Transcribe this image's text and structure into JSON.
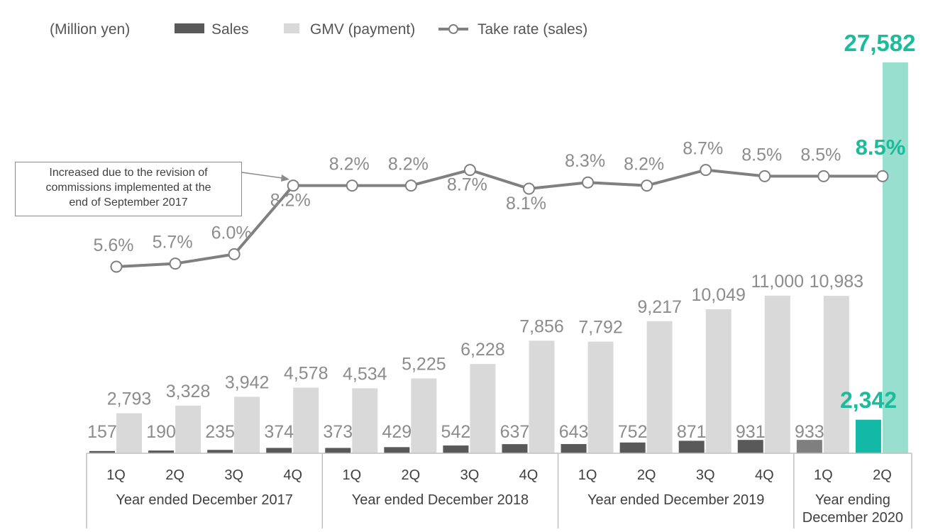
{
  "chart_data": {
    "type": "bar",
    "unit_label": "(Million yen)",
    "categories": [
      "1Q",
      "2Q",
      "3Q",
      "4Q",
      "1Q",
      "2Q",
      "3Q",
      "4Q",
      "1Q",
      "2Q",
      "3Q",
      "4Q",
      "1Q",
      "2Q"
    ],
    "groups": [
      {
        "label": "Year ended December 2017",
        "count": 4
      },
      {
        "label": "Year ended December 2018",
        "count": 4
      },
      {
        "label": "Year ended December 2019",
        "count": 4
      },
      {
        "label_lines": [
          "Year ending",
          "December 2020"
        ],
        "count": 2
      }
    ],
    "series": [
      {
        "name": "Sales",
        "kind": "bar",
        "values": [
          157,
          190,
          235,
          374,
          373,
          429,
          542,
          637,
          643,
          752,
          871,
          931,
          933,
          2342
        ],
        "labels": [
          "157",
          "190",
          "235",
          "374",
          "373",
          "429",
          "542",
          "637",
          "643",
          "752",
          "871",
          "931",
          "933",
          "2,342"
        ]
      },
      {
        "name": "GMV (payment)",
        "kind": "bar",
        "values": [
          2793,
          3328,
          3942,
          4578,
          4534,
          5225,
          6228,
          7856,
          7792,
          9217,
          10049,
          11000,
          10983,
          27582
        ],
        "labels": [
          "2,793",
          "3,328",
          "3,942",
          "4,578",
          "4,534",
          "5,225",
          "6,228",
          "7,856",
          "7,792",
          "9,217",
          "10,049",
          "11,000",
          "10,983",
          "27,582"
        ]
      },
      {
        "name": "Take rate (sales)",
        "kind": "line",
        "values": [
          5.6,
          5.7,
          6.0,
          8.2,
          8.2,
          8.2,
          8.7,
          8.1,
          8.3,
          8.2,
          8.7,
          8.5,
          8.5,
          8.5
        ],
        "labels": [
          "5.6%",
          "5.7%",
          "6.0%",
          "8.2%",
          "8.2%",
          "8.2%",
          "8.7%",
          "8.1%",
          "8.3%",
          "8.2%",
          "8.7%",
          "8.5%",
          "8.5%",
          "8.5%"
        ]
      }
    ],
    "annotation": {
      "lines": [
        "Increased due to the revision of",
        "commissions implemented at the",
        "end of September 2017"
      ],
      "target_index": 3
    },
    "colors": {
      "sales": "#595959",
      "sales_prev_quarter": "#7f7f7f",
      "gmv": "#d9d9d9",
      "highlight_sales": "#14b8a6",
      "highlight_gmv": "#99dfcf",
      "highlight_text": "#1abc9c",
      "line": "#808080",
      "label": "#8c8c8c",
      "axis_text": "#404040"
    }
  }
}
